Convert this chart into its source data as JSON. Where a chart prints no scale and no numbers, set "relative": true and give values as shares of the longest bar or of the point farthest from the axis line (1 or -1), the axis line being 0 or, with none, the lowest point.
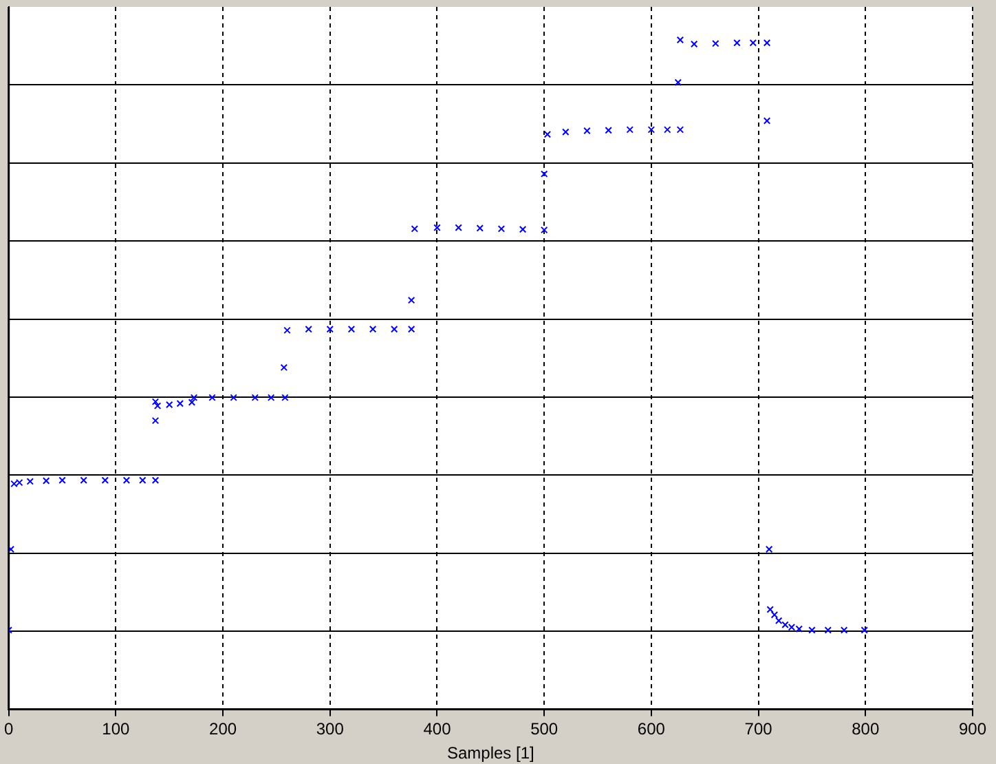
{
  "chart_data": {
    "type": "scatter",
    "xlabel": "Samples [1]",
    "relative": true,
    "xlim": [
      0,
      900
    ],
    "xticks": [
      0,
      100,
      200,
      300,
      400,
      500,
      600,
      700,
      800,
      900
    ],
    "grid": true,
    "marker": "cross",
    "legend": false,
    "series": [
      {
        "color": "#0000ff",
        "x": [
          0,
          2,
          5,
          10,
          20,
          35,
          50,
          70,
          90,
          110,
          125,
          137,
          137,
          137,
          139,
          150,
          160,
          171,
          173,
          190,
          210,
          230,
          245,
          258,
          257,
          260,
          280,
          300,
          320,
          340,
          360,
          376,
          376,
          379,
          400,
          420,
          440,
          460,
          480,
          500,
          500,
          503,
          520,
          540,
          560,
          580,
          600,
          615,
          627,
          625,
          627,
          640,
          660,
          680,
          695,
          708,
          708,
          710,
          711,
          715,
          719,
          725,
          731,
          738,
          750,
          765,
          780,
          799
        ],
        "values": [
          0,
          0.137,
          0.248,
          0.25,
          0.252,
          0.253,
          0.254,
          0.254,
          0.254,
          0.254,
          0.254,
          0.254,
          0.355,
          0.387,
          0.38,
          0.382,
          0.384,
          0.386,
          0.394,
          0.394,
          0.394,
          0.394,
          0.394,
          0.394,
          0.445,
          0.508,
          0.51,
          0.51,
          0.51,
          0.51,
          0.51,
          0.51,
          0.559,
          0.68,
          0.682,
          0.682,
          0.681,
          0.68,
          0.679,
          0.678,
          0.773,
          0.84,
          0.844,
          0.846,
          0.847,
          0.848,
          0.848,
          0.848,
          0.848,
          0.928,
          1.0,
          0.993,
          0.994,
          0.995,
          0.995,
          0.995,
          0.863,
          0.137,
          0.035,
          0.026,
          0.016,
          0.009,
          0.005,
          0.002,
          0,
          0,
          0,
          0
        ]
      }
    ]
  }
}
